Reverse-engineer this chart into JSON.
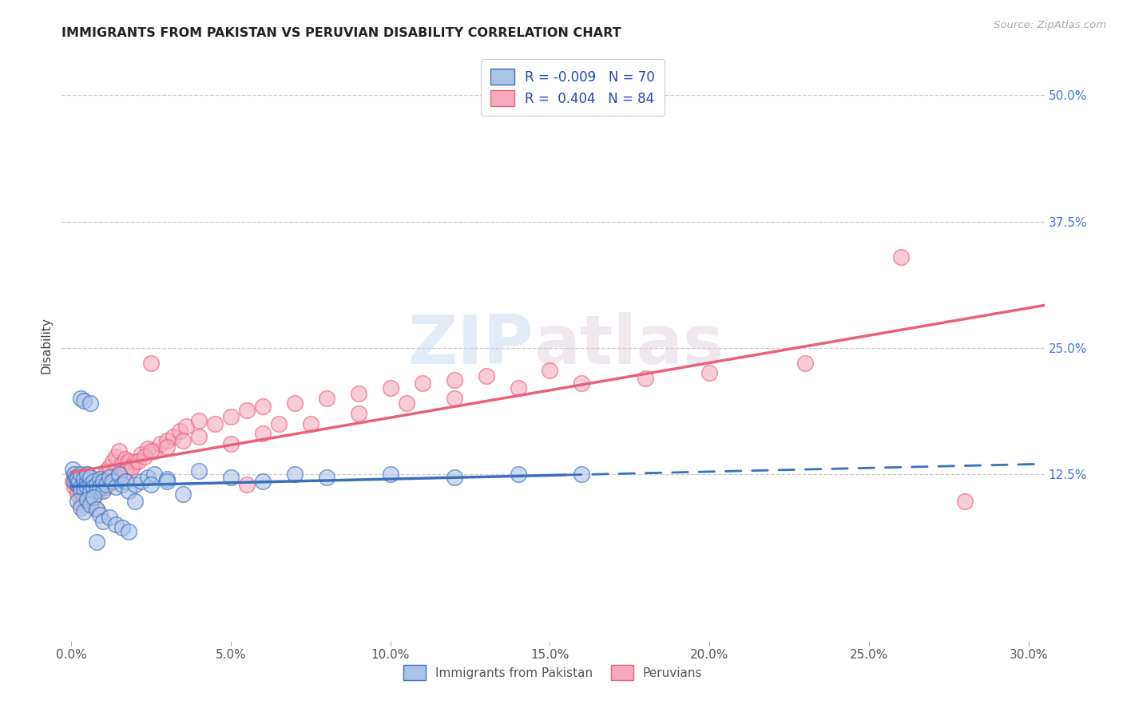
{
  "title": "IMMIGRANTS FROM PAKISTAN VS PERUVIAN DISABILITY CORRELATION CHART",
  "source": "Source: ZipAtlas.com",
  "ylabel": "Disability",
  "xlabel_ticks": [
    "0.0%",
    "5.0%",
    "10.0%",
    "15.0%",
    "20.0%",
    "25.0%",
    "30.0%"
  ],
  "xlabel_vals": [
    0.0,
    0.05,
    0.1,
    0.15,
    0.2,
    0.25,
    0.3
  ],
  "ytick_labels": [
    "12.5%",
    "25.0%",
    "37.5%",
    "50.0%"
  ],
  "ytick_vals": [
    0.125,
    0.25,
    0.375,
    0.5
  ],
  "xlim": [
    -0.003,
    0.305
  ],
  "ylim": [
    -0.04,
    0.545
  ],
  "r_pakistan": -0.009,
  "n_pakistan": 70,
  "r_peruvian": 0.404,
  "n_peruvian": 84,
  "color_pakistan": "#aac4e8",
  "color_peruvian": "#f5aac0",
  "line_color_pakistan": "#3a6fbd",
  "line_color_peruvian": "#e8607a",
  "watermark_zip": "ZIP",
  "watermark_atlas": "atlas",
  "pakistan_x": [
    0.0005,
    0.001,
    0.001,
    0.0015,
    0.002,
    0.002,
    0.0025,
    0.003,
    0.003,
    0.003,
    0.004,
    0.004,
    0.004,
    0.005,
    0.005,
    0.005,
    0.006,
    0.006,
    0.006,
    0.007,
    0.007,
    0.008,
    0.008,
    0.009,
    0.009,
    0.01,
    0.01,
    0.011,
    0.012,
    0.013,
    0.014,
    0.015,
    0.016,
    0.017,
    0.018,
    0.02,
    0.022,
    0.024,
    0.026,
    0.03,
    0.002,
    0.003,
    0.004,
    0.005,
    0.006,
    0.007,
    0.008,
    0.009,
    0.01,
    0.012,
    0.014,
    0.016,
    0.018,
    0.02,
    0.025,
    0.03,
    0.035,
    0.04,
    0.05,
    0.06,
    0.07,
    0.08,
    0.1,
    0.12,
    0.14,
    0.16,
    0.003,
    0.004,
    0.006,
    0.008
  ],
  "pakistan_y": [
    0.13,
    0.125,
    0.118,
    0.122,
    0.115,
    0.12,
    0.118,
    0.112,
    0.108,
    0.125,
    0.115,
    0.12,
    0.11,
    0.118,
    0.112,
    0.125,
    0.115,
    0.108,
    0.122,
    0.118,
    0.112,
    0.115,
    0.108,
    0.12,
    0.112,
    0.118,
    0.108,
    0.115,
    0.122,
    0.118,
    0.112,
    0.125,
    0.115,
    0.118,
    0.108,
    0.115,
    0.118,
    0.122,
    0.125,
    0.12,
    0.098,
    0.092,
    0.088,
    0.1,
    0.095,
    0.102,
    0.09,
    0.085,
    0.078,
    0.082,
    0.075,
    0.072,
    0.068,
    0.098,
    0.115,
    0.118,
    0.105,
    0.128,
    0.122,
    0.118,
    0.125,
    0.122,
    0.125,
    0.122,
    0.125,
    0.125,
    0.2,
    0.198,
    0.195,
    0.058
  ],
  "peruvian_x": [
    0.0005,
    0.001,
    0.001,
    0.0015,
    0.002,
    0.002,
    0.003,
    0.003,
    0.004,
    0.004,
    0.005,
    0.005,
    0.006,
    0.006,
    0.007,
    0.008,
    0.009,
    0.01,
    0.011,
    0.012,
    0.013,
    0.014,
    0.015,
    0.016,
    0.017,
    0.018,
    0.019,
    0.02,
    0.022,
    0.024,
    0.026,
    0.028,
    0.03,
    0.032,
    0.034,
    0.036,
    0.04,
    0.045,
    0.05,
    0.055,
    0.06,
    0.065,
    0.07,
    0.08,
    0.09,
    0.1,
    0.11,
    0.12,
    0.13,
    0.15,
    0.003,
    0.005,
    0.007,
    0.009,
    0.011,
    0.013,
    0.015,
    0.017,
    0.019,
    0.021,
    0.023,
    0.025,
    0.03,
    0.035,
    0.04,
    0.05,
    0.06,
    0.075,
    0.09,
    0.105,
    0.12,
    0.14,
    0.16,
    0.18,
    0.2,
    0.23,
    0.26,
    0.28,
    0.002,
    0.004,
    0.006,
    0.008,
    0.025,
    0.055
  ],
  "peruvian_y": [
    0.118,
    0.125,
    0.112,
    0.12,
    0.115,
    0.108,
    0.122,
    0.112,
    0.118,
    0.108,
    0.125,
    0.115,
    0.118,
    0.112,
    0.12,
    0.115,
    0.118,
    0.122,
    0.128,
    0.132,
    0.138,
    0.142,
    0.148,
    0.135,
    0.14,
    0.138,
    0.132,
    0.138,
    0.145,
    0.15,
    0.148,
    0.155,
    0.158,
    0.162,
    0.168,
    0.172,
    0.178,
    0.175,
    0.182,
    0.188,
    0.192,
    0.175,
    0.195,
    0.2,
    0.205,
    0.21,
    0.215,
    0.218,
    0.222,
    0.228,
    0.095,
    0.098,
    0.102,
    0.108,
    0.112,
    0.118,
    0.122,
    0.128,
    0.132,
    0.138,
    0.142,
    0.148,
    0.152,
    0.158,
    0.162,
    0.155,
    0.165,
    0.175,
    0.185,
    0.195,
    0.2,
    0.21,
    0.215,
    0.22,
    0.225,
    0.235,
    0.34,
    0.098,
    0.105,
    0.1,
    0.095,
    0.09,
    0.235,
    0.115
  ]
}
